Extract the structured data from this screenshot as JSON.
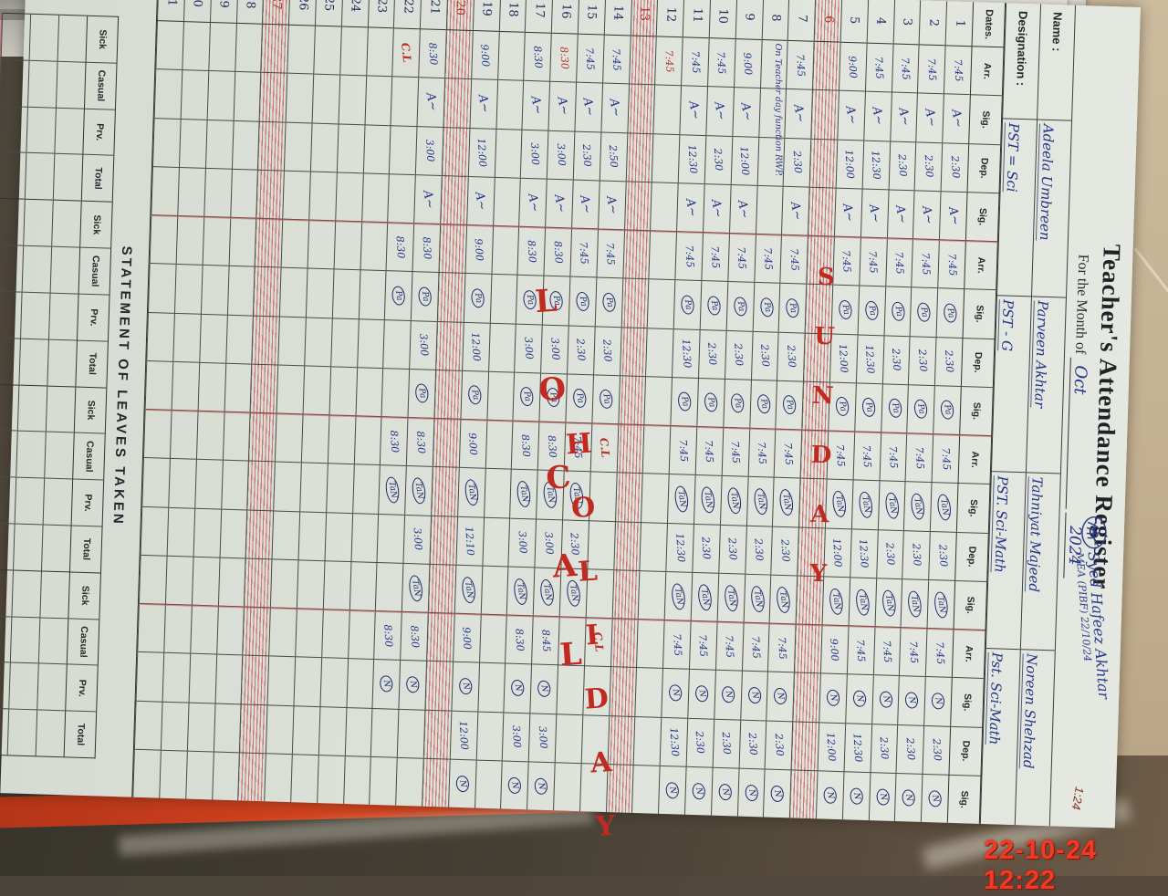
{
  "register": {
    "title": "Teacher's Attendance Register",
    "month_label": "For the Month of",
    "month_value": "Oct",
    "year_value": "2024",
    "scribble_line1": "Syed Hafeez Akhtar",
    "scribble_line2": "MEA (PIBF)  22/10/24",
    "corner_mark": "1:24",
    "name_label": "Name :",
    "names": [
      "Adeela Umbreen",
      "Parveen Akhtar",
      "Tahniyat Majeed",
      "Noreen Shehzad"
    ],
    "designation_label": "Designation :",
    "designations": [
      "PST = Sci",
      "PST - G",
      "PST. Sci-Math",
      "Pst. Sci-Math"
    ],
    "dates_header": "Dates.",
    "col_headers": [
      "Arr.",
      "Sig.",
      "Dep.",
      "Sig."
    ],
    "teacher_group_count": 4,
    "sig_tokens": {
      "t1": "A∼",
      "t2": "Pa",
      "t3": "TaN",
      "t4": "N"
    },
    "note_row8": "On Teacher day function RWP.",
    "sunday_word": "SUNDAY",
    "holiday_word1": "LOCAL",
    "holiday_word2": "HOLIDAY",
    "rows": [
      {
        "d": "1",
        "t": "n",
        "c": [
          "t:7:45",
          "s:A∼",
          "t:2:30",
          "s:A∼",
          "t:7:45",
          "c:Pa",
          "t:2:30",
          "c:Pa",
          "t:7:45",
          "c:TaN",
          "t:2:30",
          "c:TaN",
          "t:7:45",
          "c:N",
          "t:2:30",
          "c:N"
        ]
      },
      {
        "d": "2",
        "t": "n",
        "c": [
          "t:7:45",
          "s:A∼",
          "t:2:30",
          "s:A∼",
          "t:7:45",
          "c:Pa",
          "t:2:30",
          "c:Pa",
          "t:7:45",
          "c:TaN",
          "t:2:30",
          "c:TaN",
          "t:7:45",
          "c:N",
          "t:2:30",
          "c:N"
        ]
      },
      {
        "d": "3",
        "t": "n",
        "c": [
          "t:7:45",
          "s:A∼",
          "t:2:30",
          "s:A∼",
          "t:7:45",
          "c:Pa",
          "t:2:30",
          "c:Pa",
          "t:7:45",
          "c:TaN",
          "t:2:30",
          "c:TaN",
          "t:7:45",
          "c:N",
          "t:2:30",
          "c:N"
        ]
      },
      {
        "d": "4",
        "t": "n",
        "c": [
          "t:7:45",
          "s:A∼",
          "t:12:30",
          "s:A∼",
          "t:7:45",
          "c:Pa",
          "t:12:30",
          "c:Pa",
          "t:7:45",
          "c:TaN",
          "t:12:30",
          "c:TaN",
          "t:7:45",
          "c:N",
          "t:12:30",
          "c:N"
        ]
      },
      {
        "d": "5",
        "t": "n",
        "c": [
          "t:9:00",
          "s:A∼",
          "t:12:00",
          "s:A∼",
          "t:7:45",
          "c:Pa",
          "t:12:00",
          "c:Pa",
          "t:7:45",
          "c:TaN",
          "t:12:00",
          "c:TaN",
          "t:9:00",
          "c:N",
          "t:12:00",
          "c:N"
        ]
      },
      {
        "d": "6",
        "t": "s",
        "c": []
      },
      {
        "d": "7",
        "t": "n",
        "c": [
          "t:7:45",
          "s:A∼",
          "t:2:30",
          "s:A∼",
          "t:7:45",
          "c:Pa",
          "t:2:30",
          "c:Pa",
          "t:7:45",
          "c:TaN",
          "t:2:30",
          "c:TaN",
          "t:7:45",
          "c:N",
          "t:2:30",
          "c:N"
        ]
      },
      {
        "d": "8",
        "t": "n",
        "note": true,
        "c": [
          "",
          "",
          "",
          "",
          "t:7:45",
          "c:Pa",
          "t:2:30",
          "c:Pa",
          "t:7:45",
          "c:TaN",
          "t:2:30",
          "c:TaN",
          "t:7:45",
          "c:N",
          "t:2:30",
          "c:N"
        ]
      },
      {
        "d": "9",
        "t": "n",
        "c": [
          "t:9:00",
          "s:A∼",
          "t:12:00",
          "s:A∼",
          "t:7:45",
          "c:Pa",
          "t:2:30",
          "c:Pa",
          "t:7:45",
          "c:TaN",
          "t:2:30",
          "c:TaN",
          "t:7:45",
          "c:N",
          "t:2:30",
          "c:N"
        ]
      },
      {
        "d": "10",
        "t": "n",
        "c": [
          "t:7:45",
          "s:A∼",
          "t:2:30",
          "s:A∼",
          "t:7:45",
          "c:Pa",
          "t:2:30",
          "c:Pa",
          "t:7:45",
          "c:TaN",
          "t:2:30",
          "c:TaN",
          "t:7:45",
          "c:N",
          "t:2:30",
          "c:N"
        ]
      },
      {
        "d": "11",
        "t": "n",
        "c": [
          "t:7:45",
          "s:A∼",
          "t:12:30",
          "s:A∼",
          "t:7:45",
          "c:Pa",
          "t:12:30",
          "c:Pa",
          "t:7:45",
          "c:TaN",
          "t:12:30",
          "c:TaN",
          "t:7:45",
          "c:N",
          "t:12:30",
          "c:N"
        ]
      },
      {
        "d": "12",
        "t": "n",
        "c": [
          "r:7:45",
          "",
          "",
          "",
          "",
          "",
          "",
          "",
          "",
          "",
          "",
          "",
          "",
          "",
          "",
          ""
        ]
      },
      {
        "d": "13",
        "t": "s",
        "c": []
      },
      {
        "d": "14",
        "t": "n",
        "c": [
          "t:7:45",
          "s:A∼",
          "t:2:50",
          "s:A∼",
          "t:7:45",
          "c:Pa",
          "t:2:30",
          "c:Pa",
          "rc:C.L",
          "",
          "",
          "",
          "rc:C.L",
          "",
          "",
          ""
        ]
      },
      {
        "d": "15",
        "t": "n",
        "c": [
          "t:7:45",
          "s:A∼",
          "t:2:30",
          "s:A∼",
          "t:7:45",
          "c:Pa",
          "t:2:30",
          "c:Pa",
          "t:7:45",
          "c:TaN",
          "t:2:30",
          "c:TaN",
          "",
          "",
          "",
          ""
        ]
      },
      {
        "d": "16",
        "t": "n",
        "c": [
          "r:8:30",
          "s:A∼",
          "t:3:00",
          "s:A∼",
          "t:8:30",
          "c:Pa",
          "t:3:00",
          "c:Pa",
          "t:8:30",
          "c:TaN",
          "t:3:00",
          "c:TaN",
          "t:8:45",
          "c:N",
          "t:3:00",
          "c:N"
        ]
      },
      {
        "d": "17",
        "t": "n",
        "c": [
          "t:8:30",
          "s:A∼",
          "t:3:00",
          "s:A∼",
          "t:8:30",
          "c:Pa",
          "t:3:00",
          "c:Pa",
          "t:8:30",
          "c:TaN",
          "t:3:00",
          "c:TaN",
          "t:8:30",
          "c:N",
          "t:3:00",
          "c:N"
        ]
      },
      {
        "d": "18",
        "t": "e",
        "c": []
      },
      {
        "d": "19",
        "t": "n",
        "c": [
          "t:9:00",
          "s:A∼",
          "t:12:00",
          "s:A∼",
          "t:9:00",
          "c:Pa",
          "t:12:00",
          "c:Pa",
          "t:9:00",
          "c:TaN",
          "t:12:10",
          "c:TaN",
          "t:9:00",
          "c:N",
          "t:12:00",
          "c:N"
        ]
      },
      {
        "d": "20",
        "t": "s",
        "c": []
      },
      {
        "d": "21",
        "t": "n",
        "c": [
          "t:8:30",
          "s:A∼",
          "t:3:00",
          "s:A∼",
          "t:8:30",
          "c:Pa",
          "t:3:00",
          "c:Pa",
          "t:8:30",
          "c:TaN",
          "t:3:00",
          "c:TaN",
          "t:8:30",
          "c:N",
          "",
          ""
        ]
      },
      {
        "d": "22",
        "t": "n",
        "c": [
          "rc:C.L",
          "",
          "",
          "",
          "t:8:30",
          "c:Pa",
          "",
          "",
          "t:8:30",
          "c:TaN",
          "",
          "",
          "t:8:30",
          "c:N",
          "",
          ""
        ]
      },
      {
        "d": "23",
        "t": "e",
        "c": []
      },
      {
        "d": "24",
        "t": "e",
        "c": []
      },
      {
        "d": "25",
        "t": "e",
        "c": []
      },
      {
        "d": "26",
        "t": "e",
        "c": []
      },
      {
        "d": "27",
        "t": "s",
        "c": []
      },
      {
        "d": "28",
        "t": "e",
        "c": []
      },
      {
        "d": "29",
        "t": "e",
        "c": []
      },
      {
        "d": "30",
        "t": "e",
        "c": []
      },
      {
        "d": "31",
        "t": "e",
        "c": []
      }
    ],
    "statement": {
      "heading": "STATEMENT OF LEAVES TAKEN",
      "labels": [
        "Sick",
        "Casual",
        "Prv.",
        "Total"
      ],
      "group_count": 4,
      "empty_row_count": 3
    }
  },
  "camera": {
    "timestamp": "22-10-24  12:22"
  },
  "colors": {
    "paper": "#dde2da",
    "ink_blue": "#24338a",
    "ink_red": "#b5342a",
    "marker_red": "#c02a20",
    "cover_red": "#d4441f",
    "table_tan": "#c2ae8f",
    "timestamp_red": "#f23b26"
  }
}
